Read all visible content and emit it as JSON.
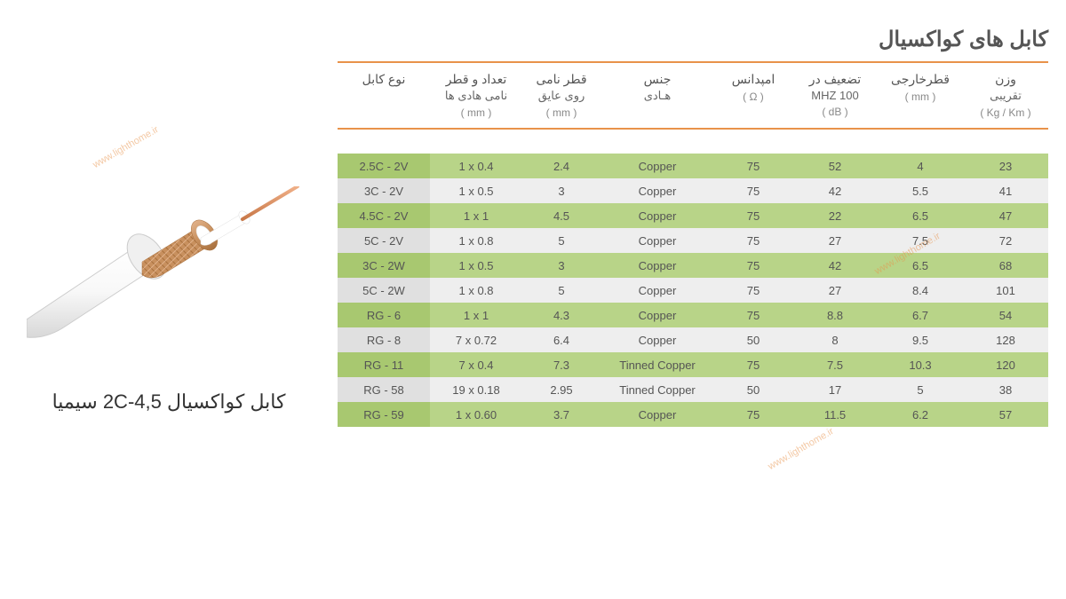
{
  "title": "کابل های کواکسیال",
  "caption": "کابل کواکسیال 4,5-2C سیمیا",
  "watermark_text": "www.lighthome.ir",
  "colors": {
    "accent": "#e8924a",
    "row_green": "#b8d488",
    "row_green_type": "#a8c870",
    "row_grey": "#eeeeee",
    "row_grey_type": "#e0e0e0",
    "text_header": "#555555",
    "text_body": "#555555",
    "copper_core": "#d8915c",
    "copper_braid": "#c8905e",
    "jacket": "#ffffff",
    "jacket_shadow": "#d0d0d0"
  },
  "columns": [
    {
      "line1": "نوع کابل",
      "line2": "",
      "unit": ""
    },
    {
      "line1": "تعداد و قطر",
      "line2": "نامی هادی ها",
      "unit": "( mm )"
    },
    {
      "line1": "قطر نامی",
      "line2": "روی عایق",
      "unit": "( mm )"
    },
    {
      "line1": "جنس",
      "line2": "هـادی",
      "unit": ""
    },
    {
      "line1": "امپدانس",
      "line2": "",
      "unit": "( Ω )"
    },
    {
      "line1": "تضعیف در",
      "line2": "100 MHZ",
      "unit": "( dB )"
    },
    {
      "line1": "قطرخارجی",
      "line2": "",
      "unit": "( mm )"
    },
    {
      "line1": "وزن",
      "line2": "تقریبی",
      "unit": "( Kg / Km )"
    }
  ],
  "rows": [
    {
      "type": "2.5C - 2V",
      "conductor": "1 x 0.4",
      "insul": "2.4",
      "material": "Copper",
      "imp": "75",
      "atten": "52",
      "outer": "4",
      "weight": "23",
      "style": "green"
    },
    {
      "type": "3C - 2V",
      "conductor": "1 x 0.5",
      "insul": "3",
      "material": "Copper",
      "imp": "75",
      "atten": "42",
      "outer": "5.5",
      "weight": "41",
      "style": "grey"
    },
    {
      "type": "4.5C - 2V",
      "conductor": "1 x 1",
      "insul": "4.5",
      "material": "Copper",
      "imp": "75",
      "atten": "22",
      "outer": "6.5",
      "weight": "47",
      "style": "green"
    },
    {
      "type": "5C - 2V",
      "conductor": "1 x 0.8",
      "insul": "5",
      "material": "Copper",
      "imp": "75",
      "atten": "27",
      "outer": "7.5",
      "weight": "72",
      "style": "grey"
    },
    {
      "type": "3C - 2W",
      "conductor": "1 x 0.5",
      "insul": "3",
      "material": "Copper",
      "imp": "75",
      "atten": "42",
      "outer": "6.5",
      "weight": "68",
      "style": "green"
    },
    {
      "type": "5C - 2W",
      "conductor": "1 x 0.8",
      "insul": "5",
      "material": "Copper",
      "imp": "75",
      "atten": "27",
      "outer": "8.4",
      "weight": "101",
      "style": "grey"
    },
    {
      "type": "RG - 6",
      "conductor": "1 x 1",
      "insul": "4.3",
      "material": "Copper",
      "imp": "75",
      "atten": "8.8",
      "outer": "6.7",
      "weight": "54",
      "style": "green"
    },
    {
      "type": "RG - 8",
      "conductor": "7 x 0.72",
      "insul": "6.4",
      "material": "Copper",
      "imp": "50",
      "atten": "8",
      "outer": "9.5",
      "weight": "128",
      "style": "grey"
    },
    {
      "type": "RG - 11",
      "conductor": "7 x 0.4",
      "insul": "7.3",
      "material": "Tinned Copper",
      "imp": "75",
      "atten": "7.5",
      "outer": "10.3",
      "weight": "120",
      "style": "green"
    },
    {
      "type": "RG - 58",
      "conductor": "19 x 0.18",
      "insul": "2.95",
      "material": "Tinned Copper",
      "imp": "50",
      "atten": "17",
      "outer": "5",
      "weight": "38",
      "style": "grey"
    },
    {
      "type": "RG - 59",
      "conductor": "1 x 0.60",
      "insul": "3.7",
      "material": "Copper",
      "imp": "75",
      "atten": "11.5",
      "outer": "6.2",
      "weight": "57",
      "style": "green"
    }
  ],
  "col_widths": [
    "13%",
    "13%",
    "11%",
    "16%",
    "11%",
    "12%",
    "12%",
    "12%"
  ]
}
